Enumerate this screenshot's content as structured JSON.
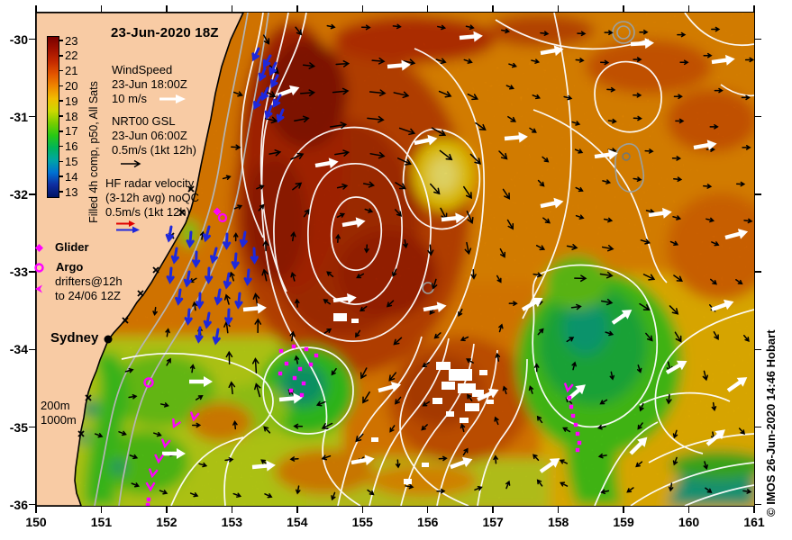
{
  "title": "23-Jun-2020 18Z",
  "colorbar": {
    "label": "Filled 4h comp, p50, All Sats",
    "ticks": [
      "23",
      "22",
      "21",
      "20",
      "19",
      "18",
      "17",
      "16",
      "15",
      "14",
      "13"
    ],
    "colors": [
      "#780000",
      "#a01000",
      "#c42a00",
      "#e25400",
      "#ef8600",
      "#f0bc00",
      "#cdd800",
      "#78cd00",
      "#28c814",
      "#00b45a",
      "#00a5a5",
      "#0072d2",
      "#0f2da0",
      "#001464"
    ]
  },
  "legend": {
    "wind": {
      "l1": "WindSpeed",
      "l2": "23-Jun 18:00Z",
      "l3": "10 m/s"
    },
    "gsl": {
      "l1": "NRT00 GSL",
      "l2": "23-Jun 06:00Z",
      "l3": "0.5m/s (1kt 12h)"
    },
    "hf": {
      "l1": "HF radar velocity",
      "l2": "(3-12h avg) noQC",
      "l3": "0.5m/s (1kt 12h)"
    },
    "glider_label": "Glider",
    "argo_label": "Argo",
    "drifters_l1": "drifters@12h",
    "drifters_l2": "to 24/06 12Z"
  },
  "map_labels": {
    "city": "Sydney",
    "depth_200": "200m",
    "depth_1000": "1000m"
  },
  "axes": {
    "x_ticks": [
      "150",
      "151",
      "152",
      "153",
      "154",
      "155",
      "156",
      "157",
      "158",
      "159",
      "160",
      "161"
    ],
    "y_ticks": [
      "-30",
      "-31",
      "-32",
      "-33",
      "-34",
      "-35",
      "-36"
    ]
  },
  "watermark": "© IMOS 26-Jun-2020 14:46 Hobart",
  "overlay_colors": {
    "wind": "#ffffff",
    "current": "#000000",
    "hf_radar": "#1e28dc",
    "hf_legend_red": "#e00000",
    "drifter": "#ff00ff",
    "land": "#f8cba4",
    "ssh_contour": "#ffffff",
    "bathy_contour": "#b5b5b5"
  },
  "chart_data": {
    "type": "heatmap",
    "title": "23-Jun-2020 18Z",
    "x_range": [
      150,
      161
    ],
    "y_range": [
      -36,
      -30
    ],
    "x_tick_values": [
      150,
      151,
      152,
      153,
      154,
      155,
      156,
      157,
      158,
      159,
      160,
      161
    ],
    "y_tick_values": [
      -30,
      -31,
      -32,
      -33,
      -34,
      -35,
      -36
    ],
    "colorbar_label": "Filled 4h comp, p50, All Sats",
    "colorbar_tick_values": [
      23,
      22,
      21,
      20,
      19,
      18,
      17,
      16,
      15,
      14,
      13
    ],
    "legend_entries": [
      "WindSpeed 23-Jun 18:00Z 10 m/s",
      "NRT00 GSL 23-Jun 06:00Z 0.5m/s (1kt 12h)",
      "HF radar velocity (3-12h avg) noQC 0.5m/s (1kt 12h)",
      "Glider",
      "Argo",
      "drifters@12h to 24/06 12Z"
    ],
    "annotations": [
      "Sydney",
      "200m",
      "1000m"
    ]
  }
}
